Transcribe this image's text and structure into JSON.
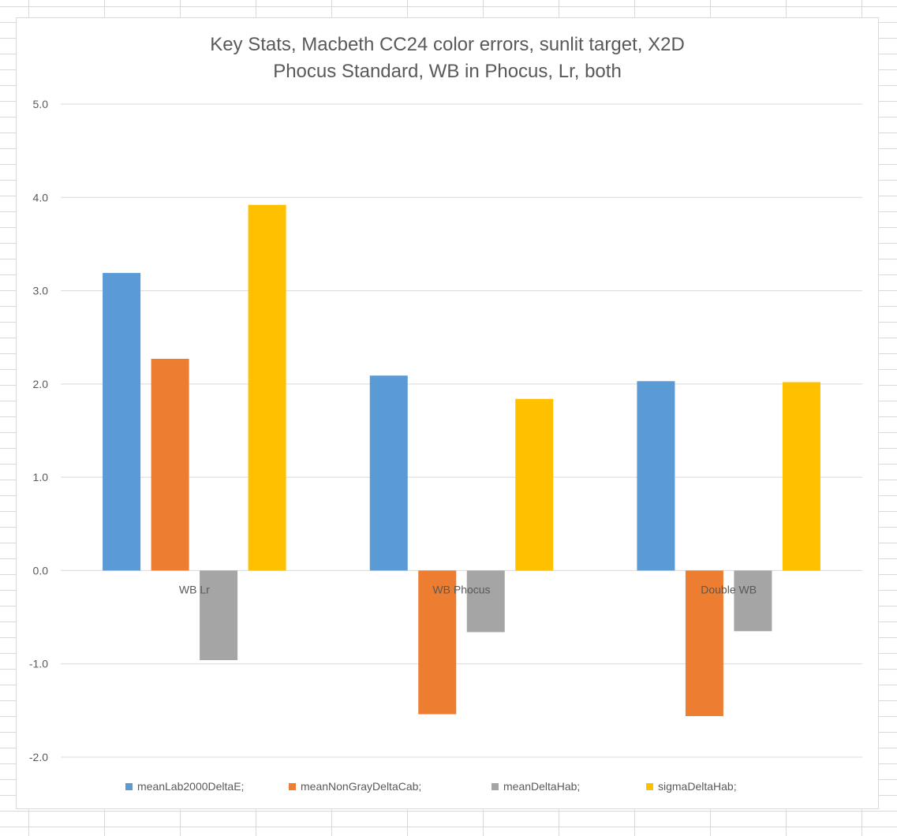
{
  "chart_data": {
    "type": "bar",
    "title": "Key Stats, Macbeth CC24 color errors, sunlit target, X2D",
    "subtitle": "Phocus Standard, WB in Phocus, Lr, both",
    "categories": [
      "WB Lr",
      "WB Phocus",
      "Double WB"
    ],
    "series": [
      {
        "name": "meanLab2000DeltaE;",
        "color": "#5b9bd5",
        "values": [
          3.19,
          2.09,
          2.03
        ]
      },
      {
        "name": "meanNonGrayDeltaCab;",
        "color": "#ed7d31",
        "values": [
          2.27,
          -1.54,
          -1.56
        ]
      },
      {
        "name": "meanDeltaHab;",
        "color": "#a5a5a5",
        "values": [
          -0.96,
          -0.66,
          -0.65
        ]
      },
      {
        "name": "sigmaDeltaHab;",
        "color": "#ffc000",
        "values": [
          3.92,
          1.84,
          2.02
        ]
      }
    ],
    "ylim": [
      -2.0,
      5.0
    ],
    "yticks": [
      "-2.0",
      "-1.0",
      "0.0",
      "1.0",
      "2.0",
      "3.0",
      "4.0",
      "5.0"
    ],
    "grid": true,
    "legend_position": "bottom",
    "xlabel": "",
    "ylabel": ""
  }
}
